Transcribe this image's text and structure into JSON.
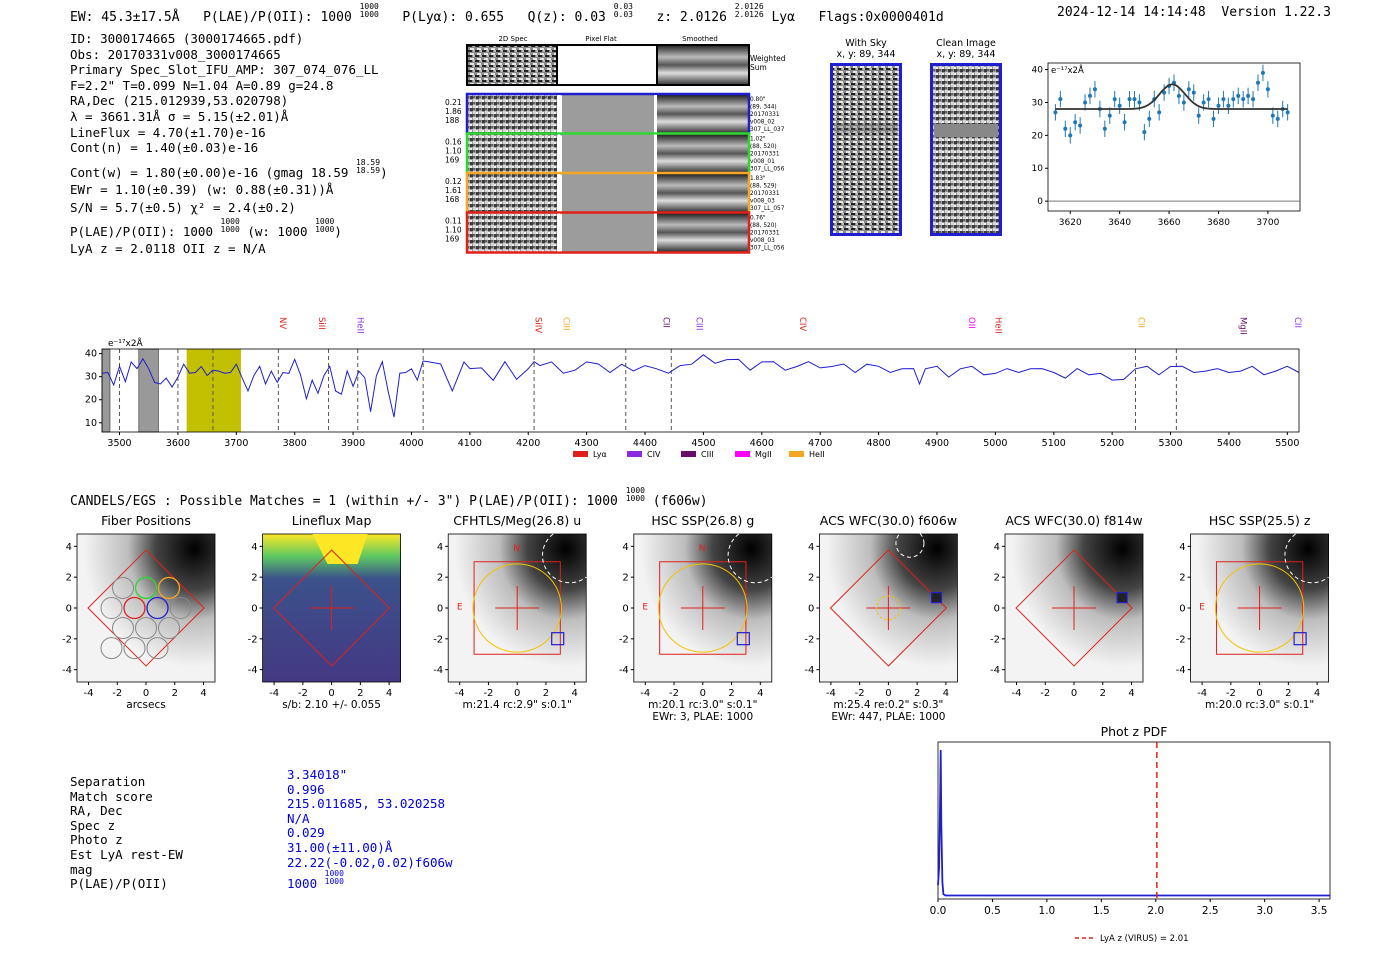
{
  "header": {
    "ew": "EW: 45.3±17.5Å",
    "plae_label": "P(LAE)/P(OII): 1000",
    "plae_frac_top": "1000",
    "plae_frac_bot": "1000",
    "plya": "P(Lyα): 0.655",
    "qz_label": "Q(z): 0.03",
    "qz_top": "0.03",
    "qz_bot": "0.03",
    "z_label": "z: 2.0126",
    "z_top": "2.0126",
    "z_bot": "2.0126",
    "z_line": "Lyα",
    "flags": "Flags:0x0000401d",
    "datetime": "2024-12-14 14:14:48",
    "version": "Version 1.22.3"
  },
  "info": {
    "lines": [
      "ID: 3000174665 (3000174665.pdf)",
      "Obs: 20170331v008_3000174665",
      "Primary Spec_Slot_IFU_AMP: 307_074_076_LL",
      "F=2.2\"  T=0.099  N=1.04  A=0.89  g=24.8",
      "RA,Dec (215.012939,53.020798)",
      "λ = 3661.31Å  σ = 5.15(±2.01)Å",
      "LineFlux = 4.70(±1.70)e-16",
      "Cont(n) = 1.40(±0.03)e-16"
    ],
    "contw": "Cont(w) = 1.80(±0.00)e-16 (gmag 18.59",
    "contw_top": "18.59",
    "contw_bot": "18.59",
    "contw_end": ")",
    "ewr": "EWr = 1.10(±0.39) (w: 0.88(±0.31))Å",
    "sn": "S/N = 5.7(±0.5)  χ² = 2.4(±0.2)",
    "plae": "P(LAE)/P(OII): 1000",
    "plae_top": "1000",
    "plae_bot": "1000",
    "plae_w": "(w: 1000",
    "plae_w_top": "1000",
    "plae_w_bot": "1000",
    "plae_end": ")",
    "lya": "LyA z = 2.0118  OII z = N/A"
  },
  "cutouts": {
    "col_2d": "2D Spec",
    "col_flat": "Pixel Flat",
    "col_smooth": "Smoothed",
    "weighted": "Weighted",
    "sum": "Sum",
    "rows": [
      {
        "a": "0.21",
        "b": "1.86",
        "c": "188",
        "d1": "0.80\"",
        "d2": "(89, 344)",
        "d3": "20170331",
        "d4": "v008_02",
        "d5": "307_LL_037",
        "color": "#1f1fd0"
      },
      {
        "a": "0.16",
        "b": "1.10",
        "c": "169",
        "d1": "1.02\"",
        "d2": "(88, 520)",
        "d3": "20170331",
        "d4": "v008_01",
        "d5": "307_LL_056",
        "color": "#2ed82e"
      },
      {
        "a": "0.12",
        "b": "1.61",
        "c": "168",
        "d1": "1.83\"",
        "d2": "(88, 529)",
        "d3": "20170331",
        "d4": "v008_03",
        "d5": "307_LL_057",
        "color": "#f5a623"
      },
      {
        "a": "0.11",
        "b": "1.10",
        "c": "169",
        "d1": "0.76\"",
        "d2": "(88, 520)",
        "d3": "20170331",
        "d4": "v008_03",
        "d5": "307_LL_056",
        "color": "#e0201a"
      }
    ],
    "withsky_title": "With Sky",
    "withsky_sub": "x, y: 89, 344",
    "clean_title": "Clean Image",
    "clean_sub": "x, y: 89, 344"
  },
  "colors": {
    "blue": "#1f1fd0",
    "red": "#e0201a",
    "orange": "#f5a623",
    "green": "#2ed82e",
    "purple": "#8a2be2",
    "darkpurple": "#6a0d6a",
    "magenta": "#ff00ff",
    "olive": "#c2c000",
    "line_blue": "#1f77b4"
  },
  "chart_data": [
    {
      "type": "scatter",
      "name": "zoom-line-fit",
      "ylabel_unit": "e⁻¹⁷x2Å",
      "xlim": [
        3611,
        3713
      ],
      "ylim": [
        -3,
        42
      ],
      "xticks": [
        3620,
        3640,
        3660,
        3680,
        3700
      ],
      "yticks": [
        0,
        10,
        20,
        30,
        40
      ],
      "x": [
        3614,
        3616,
        3618,
        3620,
        3622,
        3624,
        3626,
        3628,
        3630,
        3632,
        3634,
        3636,
        3638,
        3640,
        3642,
        3644,
        3646,
        3648,
        3650,
        3652,
        3654,
        3656,
        3658,
        3660,
        3662,
        3664,
        3666,
        3668,
        3670,
        3672,
        3674,
        3676,
        3678,
        3680,
        3682,
        3684,
        3686,
        3688,
        3690,
        3692,
        3694,
        3696,
        3698,
        3700,
        3702,
        3704,
        3706,
        3708
      ],
      "y": [
        27,
        31,
        22,
        20,
        24,
        23,
        30,
        32,
        34,
        28,
        22,
        26,
        31,
        29,
        24,
        31,
        31,
        30,
        21,
        25,
        31,
        27,
        33,
        35,
        36,
        32,
        30,
        34,
        33,
        26,
        30,
        31,
        25,
        29,
        31,
        29,
        31,
        32,
        31,
        32,
        31,
        36,
        39,
        34,
        26,
        25,
        28,
        27
      ],
      "fit": {
        "continuum": 28,
        "peak_add": 7.5,
        "center": 3661.3,
        "sigma": 5.15
      }
    },
    {
      "type": "line",
      "name": "full-spectrum",
      "ylabel_unit": "e⁻¹⁷x2Å",
      "xlim": [
        3470,
        5520
      ],
      "ylim": [
        6,
        42
      ],
      "xticks": [
        3500,
        3600,
        3700,
        3800,
        3900,
        4000,
        4100,
        4200,
        4300,
        4400,
        4500,
        4600,
        4700,
        4800,
        4900,
        5000,
        5100,
        5200,
        5300,
        5400,
        5500
      ],
      "yticks": [
        10,
        20,
        30,
        40
      ],
      "x": [
        3470,
        3480,
        3490,
        3500,
        3510,
        3520,
        3530,
        3540,
        3550,
        3560,
        3570,
        3580,
        3590,
        3600,
        3610,
        3620,
        3630,
        3640,
        3650,
        3660,
        3670,
        3680,
        3690,
        3700,
        3710,
        3720,
        3730,
        3740,
        3750,
        3760,
        3770,
        3780,
        3790,
        3800,
        3810,
        3820,
        3830,
        3840,
        3850,
        3860,
        3870,
        3880,
        3890,
        3900,
        3910,
        3920,
        3930,
        3940,
        3950,
        3960,
        3970,
        3980,
        3990,
        4000,
        4010,
        4020,
        4030,
        4050,
        4070,
        4090,
        4100,
        4120,
        4140,
        4160,
        4180,
        4200,
        4210,
        4220,
        4240,
        4260,
        4280,
        4300,
        4320,
        4340,
        4360,
        4380,
        4400,
        4420,
        4440,
        4460,
        4480,
        4500,
        4520,
        4540,
        4560,
        4580,
        4600,
        4620,
        4640,
        4660,
        4680,
        4700,
        4720,
        4740,
        4760,
        4780,
        4800,
        4820,
        4840,
        4860,
        4870,
        4880,
        4900,
        4920,
        4940,
        4960,
        4980,
        5000,
        5020,
        5040,
        5060,
        5080,
        5100,
        5120,
        5140,
        5160,
        5180,
        5200,
        5220,
        5240,
        5260,
        5280,
        5300,
        5320,
        5340,
        5360,
        5380,
        5400,
        5420,
        5440,
        5460,
        5480,
        5500,
        5520
      ],
      "y": [
        30,
        33,
        26,
        33,
        29,
        36,
        32,
        39,
        33,
        26,
        28,
        29,
        24,
        31,
        35,
        30,
        33,
        34,
        29,
        34,
        32,
        30,
        33,
        35,
        28,
        25,
        30,
        33,
        28,
        32,
        26,
        33,
        31,
        36,
        32,
        20,
        27,
        24,
        30,
        33,
        25,
        22,
        31,
        27,
        32,
        28,
        16,
        30,
        35,
        25,
        12,
        30,
        33,
        33,
        27,
        38,
        36,
        34,
        25,
        36,
        32,
        35,
        28,
        35,
        30,
        33,
        35,
        36,
        36,
        30,
        34,
        36,
        34,
        33,
        35,
        31,
        36,
        33,
        30,
        36,
        35,
        38,
        37,
        37,
        36,
        34,
        36,
        35,
        34,
        34,
        35,
        35,
        34,
        34,
        33,
        35,
        33,
        33,
        33,
        32,
        28,
        33,
        33,
        31,
        33,
        33,
        32,
        31,
        32,
        33,
        33,
        32,
        33,
        29,
        32,
        32,
        31,
        27,
        30,
        33,
        33,
        32,
        34,
        33,
        33,
        32,
        32,
        33,
        32,
        33,
        32,
        32,
        33,
        33
      ],
      "emission_lines": [
        {
          "label": "NV",
          "wave": 3775,
          "color": "#e0201a"
        },
        {
          "label": "SiII",
          "wave": 3842,
          "color": "#e0201a"
        },
        {
          "label": "HeII",
          "wave": 3908,
          "color": "#8a2be2"
        },
        {
          "label": "SiIV",
          "wave": 4212,
          "color": "#e0201a"
        },
        {
          "label": "CIII",
          "wave": 4260,
          "color": "#f5a623"
        },
        {
          "label": "CII",
          "wave": 4432,
          "color": "#6a0d6a"
        },
        {
          "label": "CIII",
          "wave": 4488,
          "color": "#8a2be2"
        },
        {
          "label": "CIV",
          "wave": 4665,
          "color": "#e0201a"
        },
        {
          "label": "OII",
          "wave": 4955,
          "color": "#ff00ff"
        },
        {
          "label": "HeII",
          "wave": 5000,
          "color": "#e0201a"
        },
        {
          "label": "CII",
          "wave": 5245,
          "color": "#f5a623"
        },
        {
          "label": "MgII",
          "wave": 5420,
          "color": "#6a0d6a"
        },
        {
          "label": "CII",
          "wave": 5543,
          "color": "#8a2be2"
        }
      ],
      "dashed_waves": [
        3500,
        3600,
        3660,
        3772,
        3858,
        3908,
        4020,
        4210,
        4367,
        4445,
        5240,
        5310
      ],
      "hatched_bands": [
        [
          3533,
          3553
        ],
        [
          3456,
          3470
        ]
      ],
      "highlight_band": [
        3615,
        3708
      ],
      "legend": [
        {
          "label": "Lyα",
          "color": "#e0201a"
        },
        {
          "label": "CIV",
          "color": "#8a2be2"
        },
        {
          "label": "CIII",
          "color": "#6a0d6a"
        },
        {
          "label": "MgII",
          "color": "#ff00ff"
        },
        {
          "label": "HeII",
          "color": "#f5a623"
        }
      ]
    },
    {
      "type": "line",
      "name": "phot-z-pdf",
      "title": "Phot z PDF",
      "xlim": [
        0.0,
        3.6
      ],
      "xticks": [
        0.0,
        0.5,
        1.0,
        1.5,
        2.0,
        2.5,
        3.0,
        3.5
      ],
      "x": [
        0.0,
        0.01,
        0.02,
        0.025,
        0.03,
        0.04,
        0.05,
        0.07,
        0.1,
        0.3,
        1.0,
        2.0,
        3.0,
        3.6
      ],
      "y": [
        0.08,
        0.2,
        0.7,
        1.0,
        0.5,
        0.1,
        0.02,
        0.01,
        0.01,
        0.01,
        0.01,
        0.01,
        0.01,
        0.01
      ],
      "vline": 2.01,
      "legend": "LyA z (VIRUS) = 2.01"
    }
  ],
  "candels": {
    "title": "CANDELS/EGS : Possible Matches = 1 (within +/- 3\")  P(LAE)/P(OII): 1000",
    "top": "1000",
    "bot": "1000",
    "end": "(f606w)"
  },
  "panels": [
    {
      "title": "Fiber Positions",
      "cap1": "arcsecs",
      "cap2": ""
    },
    {
      "title": "Lineflux Map",
      "cap1": "s/b: 2.10 +/- 0.055",
      "cap2": ""
    },
    {
      "title": "CFHTLS/Meg(26.8) u",
      "cap1": "m:21.4 rc:2.9\"  s:0.1\"",
      "cap2": ""
    },
    {
      "title": "HSC SSP(26.8) g",
      "cap1": "m:20.1 rc:3.0\"  s:0.1\"",
      "cap2": "EWr: 3, PLAE: 1000"
    },
    {
      "title": "ACS WFC(30.0) f606w",
      "cap1": "m:25.4  re:0.2\"  s:0.3\"",
      "cap2": "EWr: 447, PLAE: 1000"
    },
    {
      "title": "ACS WFC(30.0) f814w",
      "cap1": "",
      "cap2": ""
    },
    {
      "title": "HSC SSP(25.5) z",
      "cap1": "m:20.0 rc:3.0\"  s:0.1\"",
      "cap2": ""
    }
  ],
  "panel_ticks": [
    "-4",
    "-2",
    "0",
    "2",
    "4"
  ],
  "match": {
    "labels": [
      "Separation",
      "Match score",
      "RA, Dec",
      "Spec z",
      "Photo z",
      "Est LyA rest-EW",
      "mag",
      "P(LAE)/P(OII)"
    ],
    "values": [
      "3.34018\"",
      "0.996",
      "215.011685, 53.020258",
      "N/A",
      "0.029",
      "31.00(±11.00)Å",
      "22.22(-0.02,0.02)f606w",
      "1000"
    ],
    "plae_top": "1000",
    "plae_bot": "1000"
  }
}
